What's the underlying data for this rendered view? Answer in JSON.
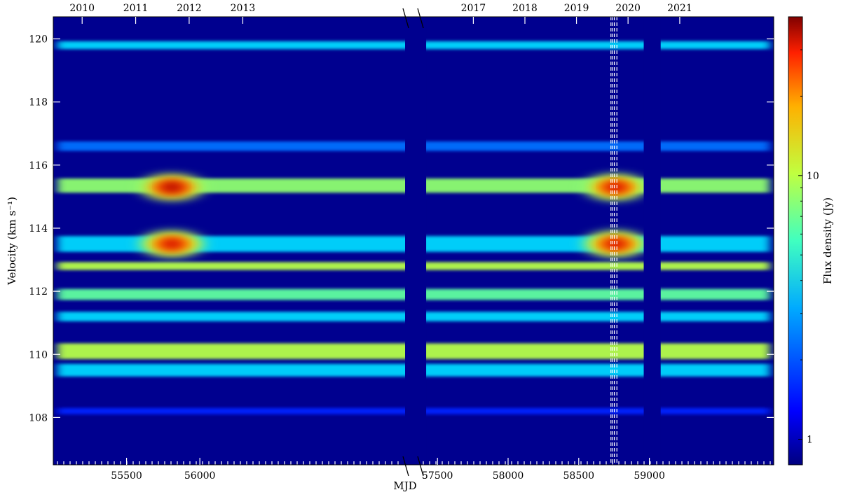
{
  "chart_data": {
    "type": "heatmap",
    "title": "",
    "xlabel": "MJD",
    "ylabel": "Velocity (km s⁻¹)",
    "colorbar_label": "Flux density (Jy)",
    "colorbar_scale": "log",
    "colorbar_range": [
      0.8,
      40
    ],
    "colorbar_ticks": [
      {
        "value": 1,
        "label": "1"
      },
      {
        "value": 10,
        "label": "10"
      }
    ],
    "colormap": "jet",
    "ylim": [
      106.5,
      120.7
    ],
    "y_ticks": [
      108,
      110,
      112,
      114,
      116,
      118,
      120
    ],
    "x_axis_break": {
      "before": [
        55000,
        57400
      ],
      "after": [
        57380,
        59880
      ],
      "marker": "//"
    },
    "x_ticks_bottom": [
      55500,
      56000,
      57500,
      58000,
      58500,
      59000
    ],
    "x_ticks_top": [
      {
        "label": "2010",
        "mjd": 55197
      },
      {
        "label": "2011",
        "mjd": 55562
      },
      {
        "label": "2012",
        "mjd": 55927
      },
      {
        "label": "2013",
        "mjd": 56293
      },
      {
        "label": "2017",
        "mjd": 57754
      },
      {
        "label": "2018",
        "mjd": 58119
      },
      {
        "label": "2019",
        "mjd": 58484
      },
      {
        "label": "2020",
        "mjd": 58849
      },
      {
        "label": "2021",
        "mjd": 59215
      }
    ],
    "observing_gaps_mjd": [
      [
        57400,
        57420
      ],
      [
        58960,
        59080
      ]
    ],
    "dashed_lines_mjd": [
      58728,
      58740,
      58752,
      58770
    ],
    "spectral_features": [
      {
        "velocity": 119.8,
        "width": 0.25,
        "peak_jy": 3
      },
      {
        "velocity": 116.6,
        "width": 0.3,
        "peak_jy": 2
      },
      {
        "velocity": 115.35,
        "width": 0.45,
        "peak_jy": 6
      },
      {
        "velocity": 113.5,
        "width": 0.5,
        "peak_jy": 3
      },
      {
        "velocity": 112.8,
        "width": 0.25,
        "peak_jy": 7
      },
      {
        "velocity": 111.9,
        "width": 0.35,
        "peak_jy": 5
      },
      {
        "velocity": 111.2,
        "width": 0.3,
        "peak_jy": 3
      },
      {
        "velocity": 110.1,
        "width": 0.5,
        "peak_jy": 7
      },
      {
        "velocity": 109.5,
        "width": 0.4,
        "peak_jy": 3
      },
      {
        "velocity": 108.2,
        "width": 0.2,
        "peak_jy": 1.5
      }
    ],
    "flares": [
      {
        "mjd": 55810,
        "velocity": 115.3,
        "peak_jy": 35
      },
      {
        "mjd": 55810,
        "velocity": 113.5,
        "peak_jy": 30
      },
      {
        "mjd": 58760,
        "velocity": 115.3,
        "peak_jy": 30
      },
      {
        "mjd": 58760,
        "velocity": 113.5,
        "peak_jy": 30
      }
    ]
  }
}
